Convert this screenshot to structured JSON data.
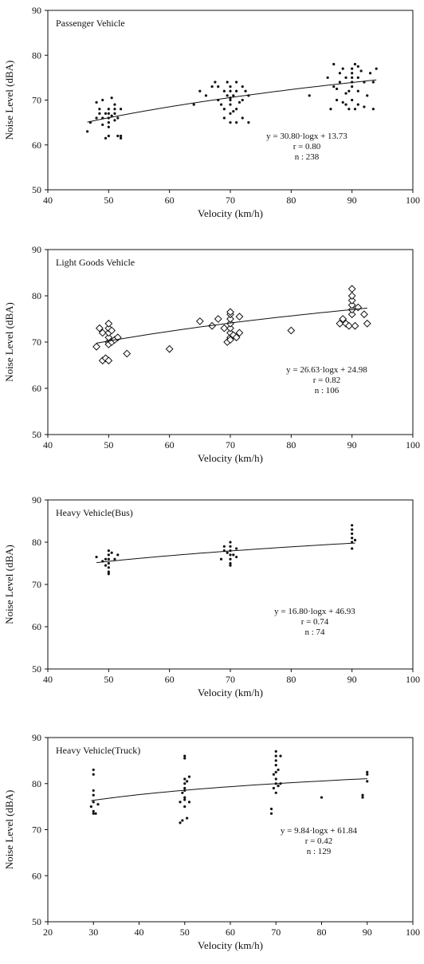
{
  "chart_data": [
    {
      "type": "scatter",
      "title": "Passenger Vehicle",
      "xlabel": "Velocity (km/h)",
      "ylabel": "Noise Level (dBA)",
      "xlim": [
        40,
        100
      ],
      "ylim": [
        50,
        90
      ],
      "xticks": [
        "40",
        "50",
        "60",
        "70",
        "80",
        "90",
        "100"
      ],
      "yticks": [
        "50",
        "60",
        "70",
        "80",
        "90"
      ],
      "grid": false,
      "marker": "dot",
      "fit": {
        "slope": 30.8,
        "intercept": 13.73
      },
      "annotation": [
        "y = 30.80·logx + 13.73",
        "r = 0.80",
        "n : 238"
      ],
      "points": [
        [
          46.5,
          63
        ],
        [
          47,
          65
        ],
        [
          48,
          66
        ],
        [
          48.5,
          67
        ],
        [
          48,
          69.5
        ],
        [
          49,
          70
        ],
        [
          49.5,
          67
        ],
        [
          49,
          66
        ],
        [
          50,
          68
        ],
        [
          50,
          67
        ],
        [
          50,
          66
        ],
        [
          50,
          65
        ],
        [
          50,
          64
        ],
        [
          50,
          62
        ],
        [
          50.5,
          70.5
        ],
        [
          51,
          69
        ],
        [
          51,
          68
        ],
        [
          51,
          67
        ],
        [
          51.5,
          62
        ],
        [
          52,
          61.5
        ],
        [
          52,
          62
        ],
        [
          52,
          68
        ],
        [
          49.5,
          61.5
        ],
        [
          48.5,
          68
        ],
        [
          50.5,
          66.5
        ],
        [
          51,
          65.5
        ],
        [
          49,
          64.5
        ],
        [
          51.5,
          66
        ],
        [
          64,
          69
        ],
        [
          65,
          72
        ],
        [
          66,
          71
        ],
        [
          67,
          73
        ],
        [
          67.5,
          74
        ],
        [
          68,
          70
        ],
        [
          68.5,
          69
        ],
        [
          69,
          68
        ],
        [
          69,
          72
        ],
        [
          69.5,
          71
        ],
        [
          70,
          70.5
        ],
        [
          70,
          70
        ],
        [
          70,
          69
        ],
        [
          70,
          72
        ],
        [
          70,
          73
        ],
        [
          70,
          67
        ],
        [
          70,
          65
        ],
        [
          70.5,
          71
        ],
        [
          71,
          74
        ],
        [
          71,
          72
        ],
        [
          71,
          68
        ],
        [
          71,
          65
        ],
        [
          72,
          70
        ],
        [
          72,
          73
        ],
        [
          72,
          66
        ],
        [
          73,
          71
        ],
        [
          73,
          65
        ],
        [
          69,
          66
        ],
        [
          68,
          73
        ],
        [
          71.5,
          69.5
        ],
        [
          70.5,
          67.5
        ],
        [
          72.5,
          72
        ],
        [
          69.5,
          74
        ],
        [
          83,
          71
        ],
        [
          86,
          75
        ],
        [
          87,
          78
        ],
        [
          87,
          73
        ],
        [
          87.5,
          70
        ],
        [
          88,
          76
        ],
        [
          88,
          74
        ],
        [
          88.5,
          77
        ],
        [
          89,
          69
        ],
        [
          89,
          75
        ],
        [
          89.5,
          72
        ],
        [
          89.5,
          68
        ],
        [
          90,
          70
        ],
        [
          90,
          73
        ],
        [
          90,
          74
        ],
        [
          90,
          75
        ],
        [
          90,
          76
        ],
        [
          90,
          77
        ],
        [
          90.5,
          68
        ],
        [
          91,
          75
        ],
        [
          91,
          72
        ],
        [
          91,
          69
        ],
        [
          92,
          74
        ],
        [
          92,
          68.5
        ],
        [
          93,
          76
        ],
        [
          93.5,
          74
        ],
        [
          93.5,
          68
        ],
        [
          94,
          77
        ],
        [
          86.5,
          68
        ],
        [
          88.5,
          69.5
        ],
        [
          91.5,
          76.5
        ],
        [
          92.5,
          71
        ],
        [
          87.5,
          72.5
        ],
        [
          90.5,
          78
        ],
        [
          89,
          71.5
        ],
        [
          91,
          77.5
        ]
      ]
    },
    {
      "type": "scatter",
      "title": "Light Goods Vehicle",
      "xlabel": "Velocity (km/h)",
      "ylabel": "Noise Level (dBA)",
      "xlim": [
        40,
        100
      ],
      "ylim": [
        50,
        90
      ],
      "xticks": [
        "40",
        "50",
        "60",
        "70",
        "80",
        "90",
        "100"
      ],
      "yticks": [
        "50",
        "60",
        "70",
        "80",
        "90"
      ],
      "grid": false,
      "marker": "diamond",
      "fit": {
        "slope": 26.63,
        "intercept": 24.98
      },
      "annotation": [
        "y = 26.63·logx + 24.98",
        "r = 0.82",
        "n : 106"
      ],
      "points": [
        [
          48,
          69
        ],
        [
          48.5,
          73
        ],
        [
          49,
          72
        ],
        [
          49,
          66
        ],
        [
          49.5,
          66.5
        ],
        [
          50,
          70
        ],
        [
          50,
          71
        ],
        [
          50,
          72
        ],
        [
          50,
          73
        ],
        [
          50,
          74
        ],
        [
          50,
          69.5
        ],
        [
          50,
          66
        ],
        [
          50.5,
          70
        ],
        [
          50.5,
          72.5
        ],
        [
          51,
          70.5
        ],
        [
          51.5,
          71
        ],
        [
          53,
          67.5
        ],
        [
          60,
          68.5
        ],
        [
          65,
          74.5
        ],
        [
          67,
          73.5
        ],
        [
          68,
          75
        ],
        [
          69,
          73
        ],
        [
          69.5,
          70
        ],
        [
          70,
          71
        ],
        [
          70,
          72
        ],
        [
          70,
          73
        ],
        [
          70,
          74
        ],
        [
          70,
          75
        ],
        [
          70,
          76
        ],
        [
          70,
          76.5
        ],
        [
          70,
          70.5
        ],
        [
          70.5,
          71.5
        ],
        [
          71,
          71
        ],
        [
          71.5,
          72
        ],
        [
          71.5,
          75.5
        ],
        [
          80,
          72.5
        ],
        [
          88,
          74
        ],
        [
          88.5,
          75
        ],
        [
          89,
          74
        ],
        [
          89.5,
          73.5
        ],
        [
          90,
          76
        ],
        [
          90,
          77
        ],
        [
          90,
          78
        ],
        [
          90,
          79
        ],
        [
          90,
          80
        ],
        [
          90,
          81.5
        ],
        [
          90.5,
          73.5
        ],
        [
          91,
          77.5
        ],
        [
          92,
          76
        ],
        [
          92.5,
          74
        ]
      ]
    },
    {
      "type": "scatter",
      "title": "Heavy Vehicle(Bus)",
      "xlabel": "Velocity (km/h)",
      "ylabel": "Noise Level (dBA)",
      "xlim": [
        40,
        100
      ],
      "ylim": [
        50,
        90
      ],
      "xticks": [
        "40",
        "50",
        "60",
        "70",
        "80",
        "90",
        "100"
      ],
      "yticks": [
        "50",
        "60",
        "70",
        "80",
        "90"
      ],
      "grid": false,
      "marker": "dot",
      "fit": {
        "slope": 16.8,
        "intercept": 46.93
      },
      "annotation": [
        "y = 16.80·logx + 46.93",
        "r = 0.74",
        "n : 74"
      ],
      "points": [
        [
          48,
          76.5
        ],
        [
          49,
          75.5
        ],
        [
          49.5,
          74.5
        ],
        [
          49.5,
          76
        ],
        [
          50,
          78
        ],
        [
          50,
          77
        ],
        [
          50,
          76
        ],
        [
          50,
          75
        ],
        [
          50,
          74
        ],
        [
          50,
          73
        ],
        [
          50,
          72.5
        ],
        [
          50.5,
          77.5
        ],
        [
          51,
          76
        ],
        [
          51.5,
          77
        ],
        [
          68.5,
          76
        ],
        [
          69,
          78
        ],
        [
          69,
          79
        ],
        [
          69.5,
          77.5
        ],
        [
          70,
          80
        ],
        [
          70,
          79
        ],
        [
          70,
          78
        ],
        [
          70,
          77
        ],
        [
          70,
          76
        ],
        [
          70,
          75
        ],
        [
          70,
          74.5
        ],
        [
          70.5,
          77
        ],
        [
          71,
          78.5
        ],
        [
          71,
          76.5
        ],
        [
          90,
          78.5
        ],
        [
          90,
          80
        ],
        [
          90,
          81
        ],
        [
          90,
          82
        ],
        [
          90,
          83
        ],
        [
          90,
          84
        ],
        [
          90.5,
          80.5
        ]
      ]
    },
    {
      "type": "scatter",
      "title": "Heavy Vehicle(Truck)",
      "xlabel": "Velocity (km/h)",
      "ylabel": "Noise Level (dBA)",
      "xlim": [
        20,
        100
      ],
      "ylim": [
        50,
        90
      ],
      "xticks": [
        "20",
        "30",
        "40",
        "50",
        "60",
        "70",
        "80",
        "90",
        "100"
      ],
      "yticks": [
        "50",
        "60",
        "70",
        "80",
        "90"
      ],
      "grid": false,
      "marker": "dot",
      "fit": {
        "slope": 9.84,
        "intercept": 61.84
      },
      "annotation": [
        "y = 9.84·logx + 61.84",
        "r = 0.42",
        "n : 129"
      ],
      "points": [
        [
          29.5,
          75
        ],
        [
          30,
          73.5
        ],
        [
          30,
          74
        ],
        [
          30,
          76
        ],
        [
          30,
          77.5
        ],
        [
          30,
          78.5
        ],
        [
          30,
          82
        ],
        [
          30,
          83
        ],
        [
          30.5,
          73.5
        ],
        [
          31,
          75.5
        ],
        [
          49,
          71.5
        ],
        [
          49,
          76
        ],
        [
          49.5,
          72
        ],
        [
          49.5,
          78
        ],
        [
          50,
          75
        ],
        [
          50,
          76.5
        ],
        [
          50,
          77
        ],
        [
          50,
          78.5
        ],
        [
          50,
          79
        ],
        [
          50,
          80
        ],
        [
          50,
          81
        ],
        [
          50,
          85.5
        ],
        [
          50,
          86
        ],
        [
          50.5,
          72.5
        ],
        [
          50.5,
          80.5
        ],
        [
          51,
          76
        ],
        [
          51,
          81.5
        ],
        [
          69,
          73.5
        ],
        [
          69,
          74.5
        ],
        [
          69.5,
          79
        ],
        [
          69.5,
          82
        ],
        [
          70,
          78
        ],
        [
          70,
          80
        ],
        [
          70,
          81
        ],
        [
          70,
          82.5
        ],
        [
          70,
          84
        ],
        [
          70,
          85
        ],
        [
          70,
          86
        ],
        [
          70,
          87
        ],
        [
          70.5,
          79.5
        ],
        [
          70.5,
          83
        ],
        [
          71,
          80
        ],
        [
          71,
          86
        ],
        [
          80,
          77
        ],
        [
          89,
          77
        ],
        [
          89,
          77.5
        ],
        [
          90,
          80.5
        ],
        [
          90,
          82
        ],
        [
          90,
          82.5
        ]
      ]
    }
  ]
}
